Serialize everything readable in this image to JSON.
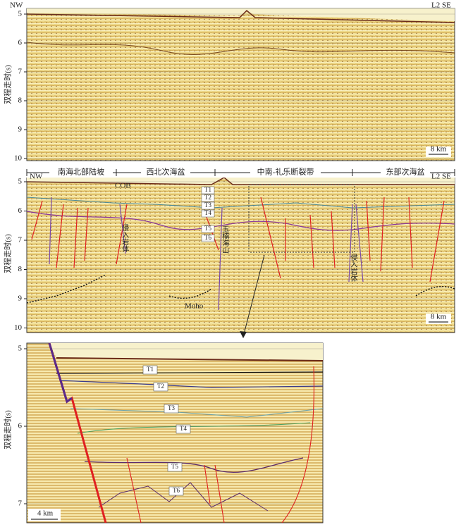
{
  "panels": [
    {
      "left_label": "NW",
      "right_label": "L2  SE",
      "y_axis_label": "双程走时(s)",
      "yticks": [
        5,
        6,
        7,
        8,
        9,
        10
      ],
      "scale_bar": "8 km"
    },
    {
      "left_label": "NW",
      "right_label": "L2  SE",
      "y_axis_label": "双程走时(s)",
      "yticks": [
        5,
        6,
        7,
        8,
        9,
        10
      ],
      "scale_bar": "8 km",
      "segments": [
        "南海北部陆坡",
        "西北次海盆",
        "中南-礼乐断裂带",
        "东部次海盆"
      ],
      "annotations": [
        "COB",
        "侵入岩体",
        "玉楠海山",
        "侵入岩体",
        "Moho"
      ],
      "horizons": [
        "T1",
        "T2",
        "T3",
        "T4",
        "T5",
        "T6"
      ]
    },
    {
      "y_axis_label": "双程走时(s)",
      "yticks": [
        5,
        6,
        7
      ],
      "scale_bar": "4 km",
      "horizons": [
        "T1",
        "T2",
        "T3",
        "T4",
        "T5",
        "T6"
      ]
    }
  ]
}
